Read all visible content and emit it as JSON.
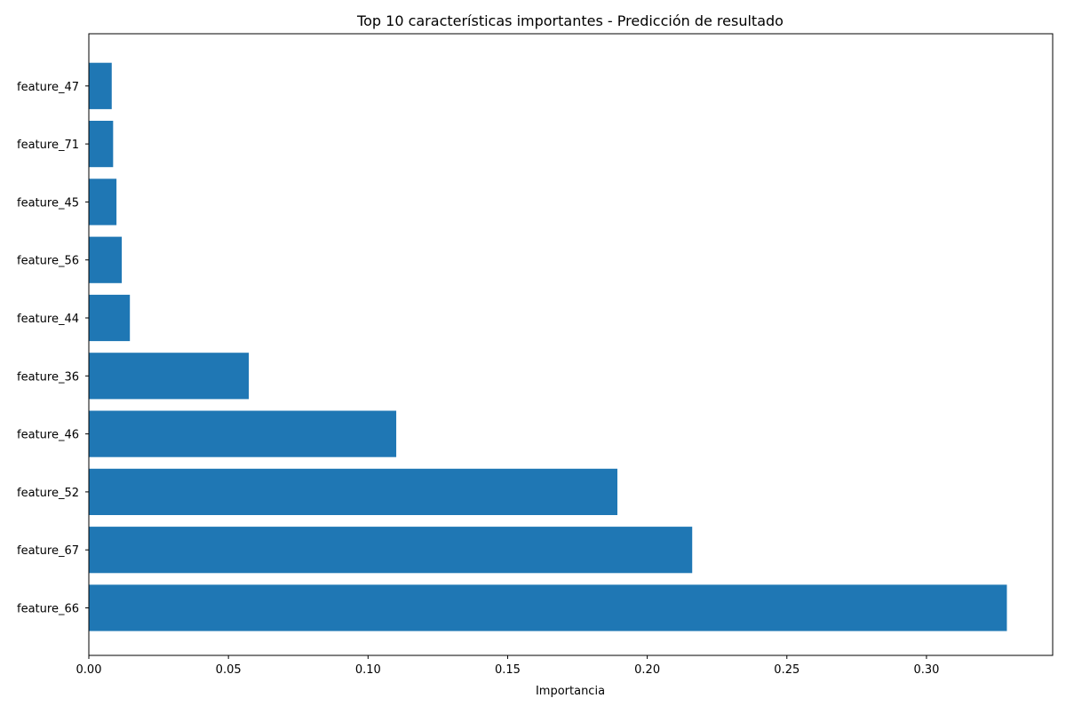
{
  "chart_data": {
    "type": "bar",
    "orientation": "horizontal",
    "title": "Top 10 características importantes - Predicción de resultado",
    "xlabel": "Importancia",
    "ylabel": "",
    "categories": [
      "feature_47",
      "feature_71",
      "feature_45",
      "feature_56",
      "feature_44",
      "feature_36",
      "feature_46",
      "feature_52",
      "feature_67",
      "feature_66"
    ],
    "values": [
      0.0082,
      0.0087,
      0.0099,
      0.0118,
      0.0147,
      0.0573,
      0.1101,
      0.1893,
      0.2161,
      0.3288
    ],
    "xlim": [
      0,
      0.3452
    ],
    "xticks": [
      0.0,
      0.05,
      0.1,
      0.15,
      0.2,
      0.25,
      0.3
    ],
    "xtick_labels": [
      "0.00",
      "0.05",
      "0.10",
      "0.15",
      "0.20",
      "0.25",
      "0.30"
    ],
    "bar_color": "#1f77b4",
    "grid": false,
    "legend": "none"
  }
}
